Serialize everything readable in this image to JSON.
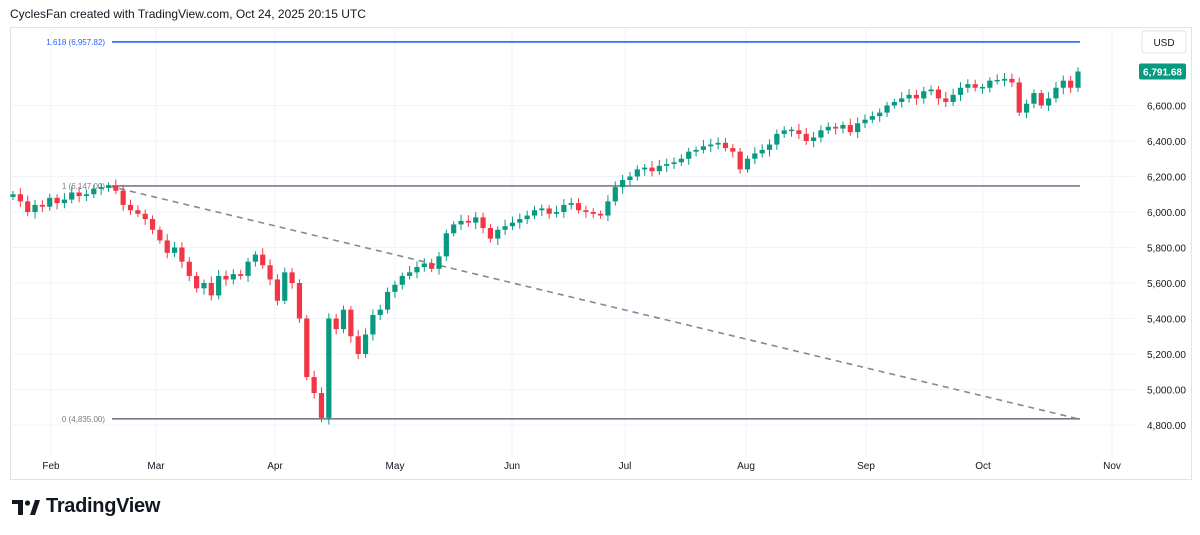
{
  "header": {
    "text": "CyclesFan created with TradingView.com, Oct 24, 2025 20:15 UTC"
  },
  "brand": {
    "name": "TradingView"
  },
  "colors": {
    "up": "#089981",
    "down": "#f23645",
    "fib": "#2962ff",
    "level": "#787b86",
    "trend": "#868993",
    "grid": "#f0f3fa"
  },
  "chart_data": {
    "type": "candlestick",
    "currency": "USD",
    "last_price": "6,791.68",
    "ylim": [
      4700,
      7050
    ],
    "y_ticks": [
      "4,800.00",
      "5,000.00",
      "5,200.00",
      "5,400.00",
      "5,600.00",
      "5,800.00",
      "6,000.00",
      "6,200.00",
      "6,400.00",
      "6,600.00"
    ],
    "x_ticks": [
      "Feb",
      "Mar",
      "Apr",
      "May",
      "Jun",
      "Jul",
      "Aug",
      "Sep",
      "Oct",
      "Nov"
    ],
    "levels": [
      {
        "label": "1.618 (6,957.82)",
        "value": 6957.82,
        "kind": "fib"
      },
      {
        "label": "1 (6,147.00)",
        "value": 6147.0,
        "kind": "level"
      },
      {
        "label": "0 (4,835.00)",
        "value": 4835.0,
        "kind": "level"
      }
    ],
    "trendline": {
      "from": {
        "date": "2025-02-19",
        "value": 6147
      },
      "to": {
        "date": "2025-10-24",
        "value": 4835
      }
    },
    "closes": [
      6100,
      6060,
      6000,
      6040,
      6030,
      6080,
      6050,
      6070,
      6110,
      6090,
      6100,
      6130,
      6140,
      6147,
      6120,
      6040,
      6010,
      5990,
      5960,
      5900,
      5840,
      5770,
      5800,
      5720,
      5640,
      5570,
      5600,
      5530,
      5640,
      5620,
      5650,
      5640,
      5720,
      5760,
      5700,
      5620,
      5500,
      5660,
      5600,
      5400,
      5070,
      4980,
      4840,
      5400,
      5340,
      5450,
      5300,
      5200,
      5310,
      5420,
      5450,
      5550,
      5590,
      5640,
      5660,
      5690,
      5710,
      5680,
      5750,
      5880,
      5930,
      5950,
      5940,
      5970,
      5910,
      5850,
      5900,
      5920,
      5940,
      5960,
      5980,
      6010,
      6020,
      5990,
      6000,
      6040,
      6050,
      6010,
      6000,
      5990,
      5980,
      6060,
      6140,
      6180,
      6200,
      6240,
      6250,
      6230,
      6260,
      6270,
      6280,
      6300,
      6340,
      6350,
      6370,
      6380,
      6390,
      6360,
      6340,
      6240,
      6300,
      6330,
      6350,
      6380,
      6440,
      6460,
      6460,
      6440,
      6400,
      6420,
      6460,
      6480,
      6470,
      6490,
      6450,
      6500,
      6520,
      6540,
      6560,
      6600,
      6620,
      6640,
      6660,
      6640,
      6680,
      6690,
      6640,
      6620,
      6660,
      6700,
      6720,
      6700,
      6700,
      6740,
      6740,
      6750,
      6730,
      6560,
      6610,
      6670,
      6600,
      6640,
      6700,
      6740,
      6700,
      6791.68
    ]
  }
}
